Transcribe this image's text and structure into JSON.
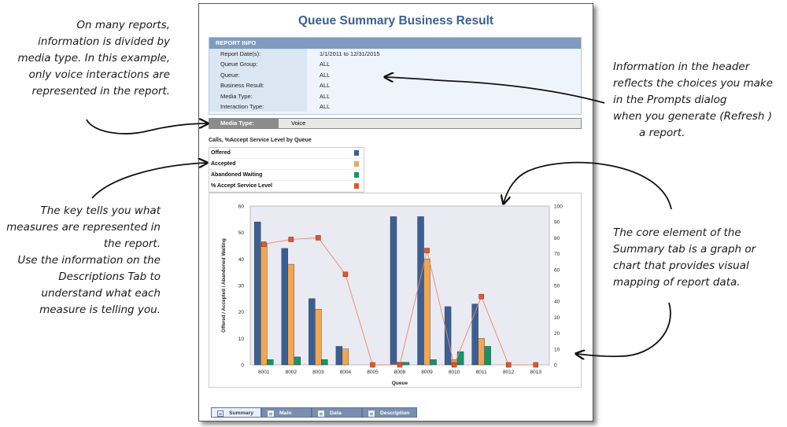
{
  "annotations": {
    "media_note": [
      "On many reports,",
      "information is divided by",
      "media type. In this example,",
      "only voice interactions are",
      "represented in the report."
    ],
    "header_note": [
      "Information in the header",
      "reflects the choices you make",
      "in the Prompts dialog",
      "when you generate (Refresh )",
      "a report."
    ],
    "key_note": [
      "The key tells you what",
      "measures are represented in",
      "the report.",
      "Use the information on the",
      "Descriptions Tab to",
      "understand what each",
      "measure is telling you."
    ],
    "chart_note": [
      "The core element of the",
      "Summary tab is a graph or",
      "chart that provides visual",
      "mapping of report data."
    ]
  },
  "report": {
    "title": "Queue Summary Business Result",
    "info_header": "REPORT INFO",
    "info_rows": [
      {
        "label": "Report Date(s):",
        "value": "1/1/2011  to  12/31/2015"
      },
      {
        "label": "Queue Group:",
        "value": "ALL"
      },
      {
        "label": "Queue:",
        "value": "ALL"
      },
      {
        "label": "Business Result:",
        "value": "ALL"
      },
      {
        "label": "Media Type:",
        "value": "ALL"
      },
      {
        "label": "Interaction Type:",
        "value": "ALL"
      }
    ],
    "media_type_label": "Media Type:",
    "media_type_value": "Voice",
    "chart_heading": "Calls, %Accept Service Level by Queue",
    "legend": [
      {
        "label": "Offered",
        "color": "#3a5f95"
      },
      {
        "label": "Accepted",
        "color": "#f0a652"
      },
      {
        "label": "Abandoned Waiting",
        "color": "#16936b"
      },
      {
        "label": "% Accept Service Level",
        "color": "#e0582a"
      }
    ],
    "tabs": [
      {
        "label": "Summary",
        "icon": "document-icon",
        "active": true
      },
      {
        "label": "Main",
        "icon": "document-icon",
        "active": false
      },
      {
        "label": "Data",
        "icon": "document-icon",
        "active": false
      },
      {
        "label": "Description",
        "icon": "document-icon",
        "active": false
      }
    ]
  },
  "chart_data": {
    "type": "bar",
    "categories": [
      "8001",
      "8002",
      "8003",
      "8004",
      "8005",
      "8008",
      "8009",
      "8010",
      "8011",
      "8012",
      "8013"
    ],
    "series": [
      {
        "name": "Offered",
        "values": [
          54,
          44,
          25,
          7,
          0,
          56,
          56,
          22,
          23,
          0,
          0
        ],
        "axis": "left"
      },
      {
        "name": "Accepted",
        "values": [
          46,
          38,
          21,
          6,
          0,
          1,
          40,
          2,
          10,
          0,
          0
        ],
        "axis": "left"
      },
      {
        "name": "Abandoned Waiting",
        "values": [
          2,
          3,
          2,
          0,
          0,
          1,
          2,
          5,
          7,
          0,
          0
        ],
        "axis": "left"
      },
      {
        "name": "% Accept Service Level",
        "type": "line",
        "values": [
          76,
          79,
          80,
          57,
          0,
          0,
          72,
          0,
          43,
          0,
          0
        ],
        "axis": "right"
      }
    ],
    "xlabel": "Queue",
    "ylabel": "Offered / Accepted / Abandoned Waiting",
    "ylim": [
      0,
      60
    ],
    "y2lim": [
      0,
      100
    ],
    "yticks": [
      0,
      10,
      20,
      30,
      40,
      50,
      60
    ],
    "y2ticks": [
      0,
      10,
      20,
      30,
      40,
      50,
      60,
      70,
      80,
      90,
      100
    ],
    "grid": false
  }
}
